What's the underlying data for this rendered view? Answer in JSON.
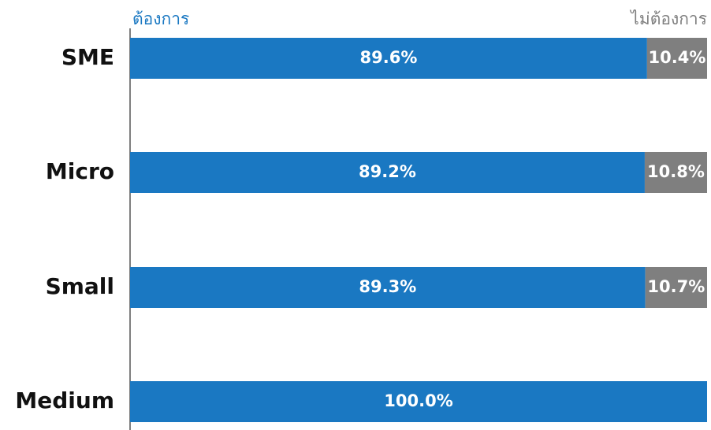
{
  "chart_data": {
    "type": "stacked-barh",
    "categories": [
      "SME",
      "Micro",
      "Small",
      "Medium"
    ],
    "series": [
      {
        "name": "ต้องการ",
        "color": "#1a78c2",
        "values": [
          89.6,
          89.2,
          89.3,
          100.0
        ],
        "value_labels": [
          "89.6%",
          "89.2%",
          "89.3%",
          "100.0%"
        ]
      },
      {
        "name": "ไม่ต้องการ",
        "color": "#7f7f7f",
        "values": [
          10.4,
          10.8,
          10.7,
          null
        ],
        "value_labels": [
          "10.4%",
          "10.8%",
          "10.7%",
          null
        ]
      }
    ],
    "xlim": [
      0,
      100
    ]
  }
}
